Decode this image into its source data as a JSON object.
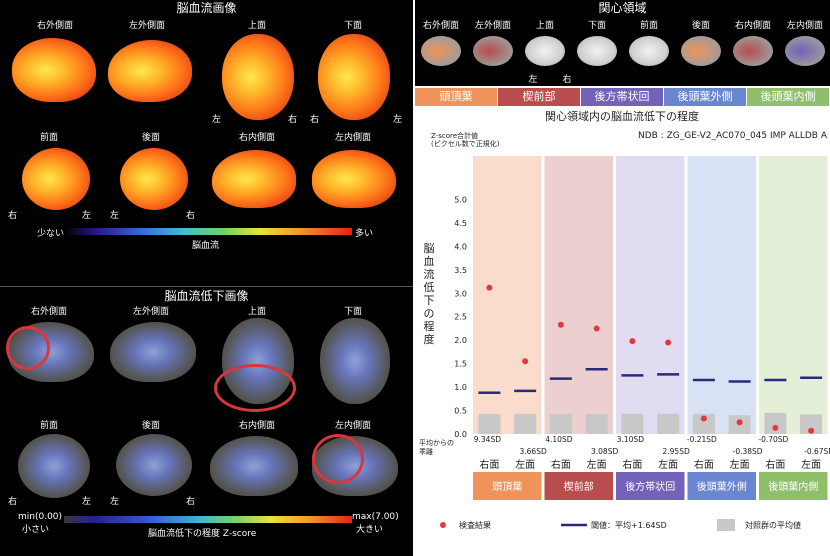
{
  "left": {
    "top_title": "脳血流画像",
    "bottom_title": "脳血流低下画像",
    "views_row1": [
      "右外側面",
      "左外側面",
      "上面",
      "下面"
    ],
    "views_row2": [
      "前面",
      "後面",
      "右内側面",
      "左内側面"
    ],
    "side_left": "左",
    "side_right": "右",
    "top_scale": {
      "low": "少ない",
      "mid": "脳血流",
      "high": "多い"
    },
    "bottom_scale": {
      "min": "min(0.00)",
      "min_sub": "小さい",
      "mid": "脳血流低下の程度  Z-score",
      "max": "max(7.00)",
      "max_sub": "大きい"
    }
  },
  "right": {
    "title": "関心領域",
    "thumbs": [
      "右外側面",
      "左外側面",
      "上面",
      "下面",
      "前面",
      "後面",
      "右内側面",
      "左内側面"
    ],
    "thumb_side_left": "左",
    "thumb_side_right": "右",
    "regions": [
      "頭頂葉",
      "楔前部",
      "後方帯状回",
      "後頭葉外側",
      "後頭葉内側"
    ],
    "region_colors": [
      "#f0935a",
      "#b94d4d",
      "#7461b8",
      "#6a86d0",
      "#8fbf6a"
    ]
  },
  "chart_data": {
    "type": "scatter",
    "title": "関心領域内の脳血流低下の程度",
    "ylabel": "脳血流低下の程度",
    "ylabel_note": "Z-score合計値\n(ピクセル数で正規化)",
    "info": "NDB : ZG_GE-V2_AC070_045 IMP ALLDB A",
    "ylim": [
      0,
      5.5
    ],
    "yticks": [
      "0.0",
      "0.5",
      "1.0",
      "1.5",
      "2.0",
      "2.5",
      "3.0",
      "3.5",
      "4.0",
      "4.5",
      "5.0"
    ],
    "categories": [
      "右面",
      "左面",
      "右面",
      "左面",
      "右面",
      "左面",
      "右面",
      "左面",
      "右面",
      "左面"
    ],
    "groups": [
      "頭頂葉",
      "楔前部",
      "後方帯状回",
      "後頭葉外側",
      "後頭葉内側"
    ],
    "sd_header": "平均からの\n乖離",
    "sd_labels": [
      "9.34SD",
      "3.66SD",
      "4.10SD",
      "3.08SD",
      "3.10SD",
      "2.95SD",
      "-0.21SD",
      "-0.38SD",
      "-0.70SD",
      "-0.67SD"
    ],
    "series": [
      {
        "name": "検査結果",
        "values": [
          3.12,
          1.55,
          2.33,
          2.25,
          1.98,
          1.95,
          0.33,
          0.25,
          0.13,
          0.07
        ]
      },
      {
        "name": "閾値：平均+1.64SD",
        "values": [
          0.88,
          0.92,
          1.18,
          1.38,
          1.25,
          1.27,
          1.15,
          1.12,
          1.15,
          1.2
        ]
      },
      {
        "name": "対照群の平均値",
        "values": [
          0.43,
          0.43,
          0.43,
          0.43,
          0.43,
          0.43,
          0.43,
          0.4,
          0.45,
          0.42
        ]
      }
    ],
    "legend": [
      "検査結果",
      "閾値：平均+1.64SD",
      "対照群の平均値"
    ]
  }
}
